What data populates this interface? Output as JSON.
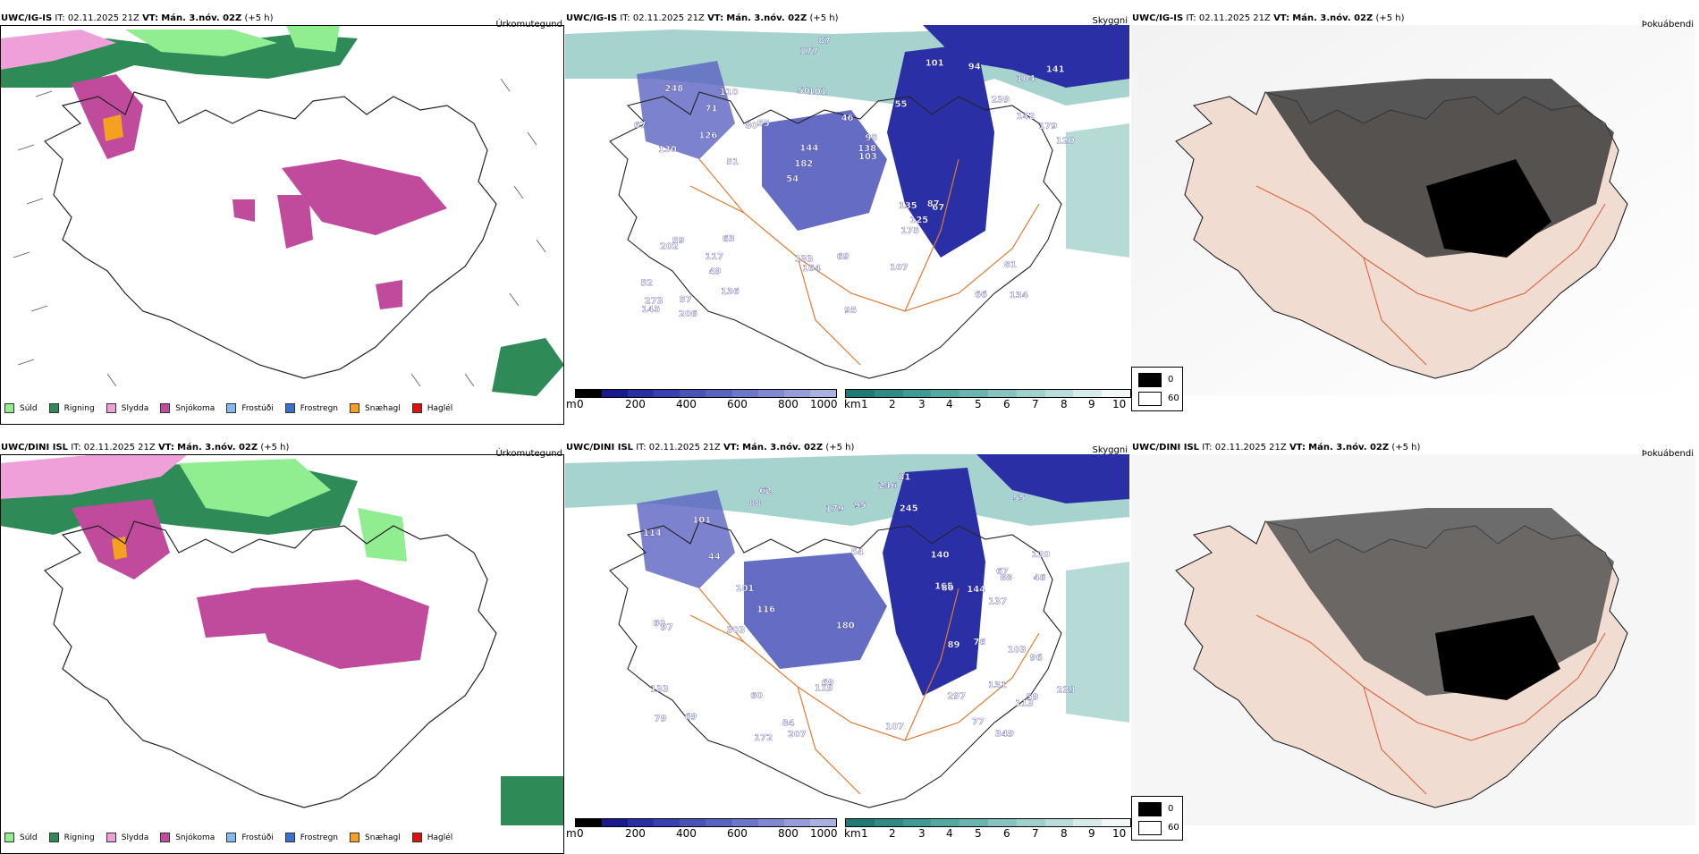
{
  "rows": [
    {
      "model": "UWC/IG-IS",
      "it_label": "IT:",
      "it_value": "02.11.2025 21Z",
      "vt_label": "VT:",
      "vt_value": "Mán. 3.nóv. 02Z",
      "lead": "(+5 h)",
      "point_labels": [
        "134",
        "130",
        "104",
        "54",
        "55",
        "57",
        "50",
        "46",
        "59",
        "55",
        "52",
        "49",
        "101",
        "95",
        "67",
        "248",
        "177",
        "120",
        "135",
        "142",
        "182",
        "133",
        "144",
        "110",
        "101",
        "63",
        "66",
        "81",
        "87",
        "95",
        "80",
        "126",
        "175",
        "136",
        "179",
        "138",
        "273",
        "164",
        "103",
        "202",
        "239",
        "141",
        "125",
        "107",
        "117",
        "206",
        "145",
        "69",
        "94",
        "87",
        "51",
        "67",
        "71"
      ]
    },
    {
      "model": "UWC/DINI ISL",
      "it_label": "IT:",
      "it_value": "02.11.2025 21Z",
      "vt_label": "VT:",
      "vt_value": "Mán. 3.nóv. 02Z",
      "lead": "(+5 h)",
      "point_labels": [
        "131",
        "120",
        "59",
        "54",
        "79",
        "62",
        "67",
        "60",
        "55",
        "44",
        "46",
        "114",
        "137",
        "207",
        "133",
        "101",
        "113",
        "88",
        "69",
        "88",
        "60",
        "97",
        "107",
        "165",
        "84",
        "119",
        "246",
        "245",
        "140",
        "239",
        "303",
        "297",
        "172",
        "180",
        "103",
        "77",
        "80",
        "179",
        "349",
        "116",
        "76",
        "144",
        "95",
        "101",
        "96",
        "89",
        "69",
        "81"
      ]
    }
  ],
  "panel_titles": {
    "precip_type": "Úrkomutegund",
    "cloud": "Skyggni",
    "fog": "Þokuábendi"
  },
  "precip_legend": [
    {
      "label": "Súld",
      "color": "#90ee90"
    },
    {
      "label": "Rigning",
      "color": "#2e8b57"
    },
    {
      "label": "Slydda",
      "color": "#f0a0d8"
    },
    {
      "label": "Snjókoma",
      "color": "#c04a9c"
    },
    {
      "label": "Frostúði",
      "color": "#87b8f0"
    },
    {
      "label": "Frostregn",
      "color": "#3a6fd0"
    },
    {
      "label": "Snæhagl",
      "color": "#f5a020"
    },
    {
      "label": "Haglél",
      "color": "#e01010"
    }
  ],
  "colorbar_m": {
    "unit": "m",
    "ticks": [
      "0",
      "200",
      "400",
      "600",
      "800",
      "1000"
    ],
    "colors": [
      "#000000",
      "#1a1a8c",
      "#2b2fa6",
      "#3a40b0",
      "#4a52b8",
      "#5b63c0",
      "#6d76c8",
      "#8088d0",
      "#959cd8",
      "#aab0e0"
    ]
  },
  "colorbar_km": {
    "unit": "km",
    "ticks": [
      "1",
      "2",
      "3",
      "4",
      "5",
      "6",
      "7",
      "8",
      "9",
      "10"
    ],
    "colors": [
      "#1f7a74",
      "#2f8a84",
      "#3f9a92",
      "#55a8a0",
      "#6cb5ae",
      "#86c3bd",
      "#a0d0cb",
      "#bbddd9",
      "#d6ebe8",
      "#f2f8f7"
    ]
  },
  "fog_legend": {
    "black_label": "0",
    "white_label": "60"
  }
}
